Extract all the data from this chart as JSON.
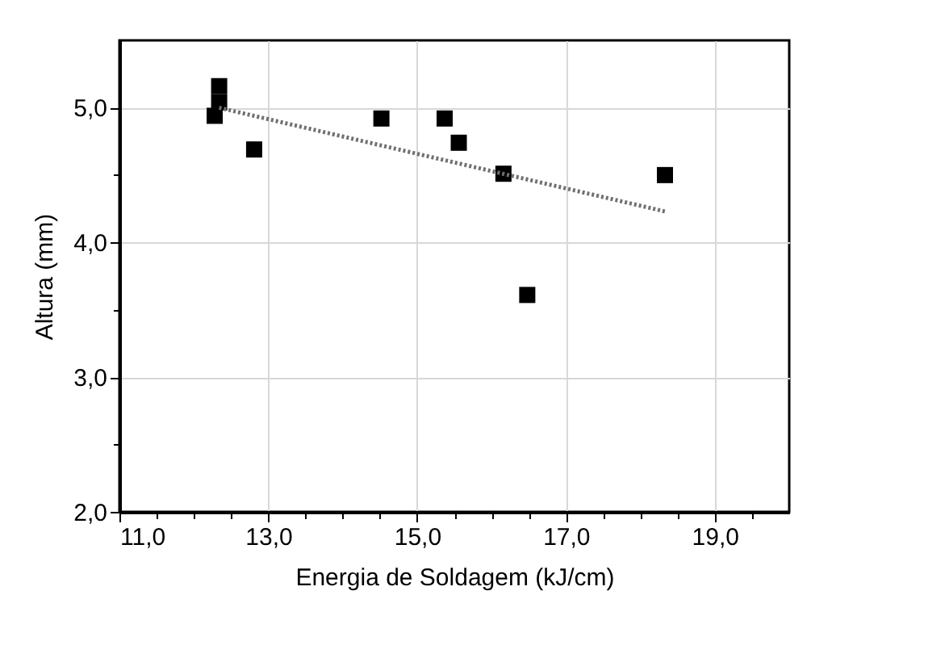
{
  "chart_data": {
    "type": "scatter",
    "xlabel": "Energia de Soldagem (kJ/cm)",
    "ylabel": "Altura (mm)",
    "xlim": [
      11,
      20
    ],
    "ylim": [
      2,
      5.5
    ],
    "xticks": [
      {
        "value": 11,
        "label": "11,0"
      },
      {
        "value": 11.5,
        "label": null
      },
      {
        "value": 12,
        "label": null
      },
      {
        "value": 12.5,
        "label": null
      },
      {
        "value": 13,
        "label": "13,0"
      },
      {
        "value": 13.5,
        "label": null
      },
      {
        "value": 14,
        "label": null
      },
      {
        "value": 14.5,
        "label": null
      },
      {
        "value": 15,
        "label": "15,0"
      },
      {
        "value": 15.5,
        "label": null
      },
      {
        "value": 16,
        "label": null
      },
      {
        "value": 16.5,
        "label": null
      },
      {
        "value": 17,
        "label": "17,0"
      },
      {
        "value": 17.5,
        "label": null
      },
      {
        "value": 18,
        "label": null
      },
      {
        "value": 18.5,
        "label": null
      },
      {
        "value": 19,
        "label": "19,0"
      },
      {
        "value": 19.5,
        "label": null
      }
    ],
    "yticks": [
      {
        "value": 2,
        "label": "2,0"
      },
      {
        "value": 2.5,
        "label": null
      },
      {
        "value": 3,
        "label": "3,0"
      },
      {
        "value": 3.5,
        "label": null
      },
      {
        "value": 4,
        "label": "4,0"
      },
      {
        "value": 4.5,
        "label": null
      },
      {
        "value": 5,
        "label": "5,0"
      }
    ],
    "grid": true,
    "marker": "square",
    "series": [
      {
        "type": "scatter",
        "color": "#000000",
        "x": [
          12.34,
          12.34,
          12.28,
          12.81,
          14.52,
          15.37,
          15.56,
          16.16,
          16.48,
          18.33
        ],
        "values": [
          5.16,
          5.04,
          4.94,
          4.69,
          4.92,
          4.92,
          4.74,
          4.51,
          3.61,
          4.5
        ]
      },
      {
        "type": "line",
        "color": "#707070",
        "line_style": "dotted",
        "marker": "none",
        "x": [
          12.34,
          18.33
        ],
        "values": [
          5.0,
          4.23
        ]
      }
    ]
  }
}
